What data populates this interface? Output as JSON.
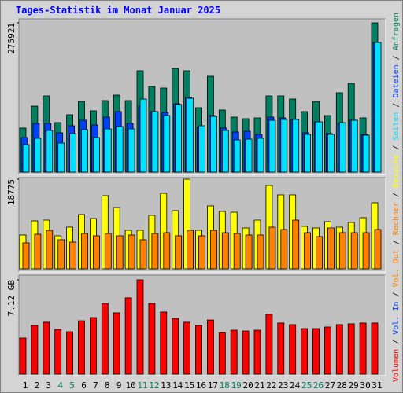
{
  "title": "Tages-Statistik im Monat Januar 2025",
  "separator": "/",
  "chart_data": [
    {
      "type": "bar",
      "categories": [
        "1",
        "2",
        "3",
        "4",
        "5",
        "6",
        "7",
        "8",
        "9",
        "10",
        "11",
        "12",
        "13",
        "14",
        "15",
        "16",
        "17",
        "18",
        "19",
        "20",
        "21",
        "22",
        "23",
        "24",
        "25",
        "26",
        "27",
        "28",
        "29",
        "30",
        "31"
      ],
      "category_colors": [
        "#000000",
        "#000000",
        "#000000",
        "#00805c",
        "#00805c",
        "#000000",
        "#000000",
        "#000000",
        "#000000",
        "#000000",
        "#00805c",
        "#00805c",
        "#000000",
        "#000000",
        "#000000",
        "#000000",
        "#000000",
        "#00805c",
        "#00805c",
        "#000000",
        "#000000",
        "#000000",
        "#000000",
        "#000000",
        "#00805c",
        "#00805c",
        "#000000",
        "#000000",
        "#000000",
        "#000000",
        "#000000"
      ],
      "ylim": [
        0,
        275921
      ],
      "yticks": [
        275921
      ],
      "series": [
        {
          "name": "Anfragen",
          "color": "#008060",
          "values": [
            81323,
            121985,
            140863,
            91489,
            106011,
            130698,
            113272,
            132150,
            142316,
            132150,
            187334,
            158290,
            155385,
            191690,
            187334,
            119080,
            177168,
            114724,
            101654,
            98750,
            100202,
            140863,
            140863,
            135055,
            111819,
            130698,
            104558,
            146672,
            164099,
            100202,
            275921
          ]
        },
        {
          "name": "Dateien",
          "color": "#0040ff",
          "values": [
            63890,
            90030,
            90030,
            72600,
            85670,
            95830,
            87120,
            101640,
            111800,
            90030,
            121970,
            111800,
            110350,
            126320,
            137940,
            82760,
            104540,
            81310,
            74050,
            75500,
            69700,
            101640,
            100190,
            97280,
            72600,
            92930,
            71150,
            90030,
            95830,
            69700,
            239580
          ]
        },
        {
          "name": "Seiten",
          "color": "#00e0ff",
          "values": [
            50820,
            62440,
            76960,
            53720,
            71150,
            78410,
            63890,
            79860,
            84220,
            79860,
            135040,
            111800,
            104540,
            124870,
            136490,
            85670,
            103090,
            76960,
            59530,
            60980,
            62440,
            95830,
            97280,
            97280,
            69700,
            92930,
            69700,
            91480,
            95830,
            68240,
            239580
          ]
        }
      ]
    },
    {
      "type": "bar",
      "ylim": [
        0,
        18775
      ],
      "yticks": [
        18775
      ],
      "series": [
        {
          "name": "Besuche",
          "color": "#ffff00",
          "values": [
            7082,
            10047,
            10211,
            6917,
            8729,
            11364,
            10541,
            15317,
            12847,
            8070,
            8070,
            11200,
            15811,
            12188,
            18775,
            8070,
            13176,
            12023,
            11858,
            8564,
            10211,
            17458,
            15482,
            15482,
            8894,
            8564,
            9882,
            8729,
            9717,
            10706,
            13835
          ]
        },
        {
          "name": "Rechner",
          "color": "#ff8000",
          "values": [
            5435,
            7247,
            8070,
            6094,
            5600,
            7412,
            6917,
            7412,
            6917,
            7082,
            6094,
            7412,
            7576,
            6917,
            8070,
            6917,
            8070,
            7576,
            7412,
            7082,
            7082,
            8729,
            8235,
            10211,
            7576,
            6753,
            8564,
            7576,
            7576,
            7576,
            8235
          ]
        }
      ]
    },
    {
      "type": "bar",
      "ylim": [
        0,
        7.12
      ],
      "yticks": [
        {
          "value": 7.12,
          "label": "7.12 GB"
        }
      ],
      "series": [
        {
          "name": "Volumen",
          "color": "#ff0000",
          "values": [
            2.73,
            3.68,
            3.92,
            3.38,
            3.2,
            4.03,
            4.27,
            5.34,
            4.63,
            5.76,
            7.12,
            5.34,
            4.69,
            4.21,
            3.92,
            3.68,
            4.09,
            3.14,
            3.32,
            3.26,
            3.32,
            4.51,
            3.86,
            3.74,
            3.44,
            3.44,
            3.56,
            3.74,
            3.8,
            3.86,
            3.86
          ]
        }
      ],
      "legend_extra": [
        {
          "name": "Vol. In",
          "color": "#0040ff"
        },
        {
          "name": "Vol. Out",
          "color": "#ff8000"
        }
      ]
    }
  ]
}
